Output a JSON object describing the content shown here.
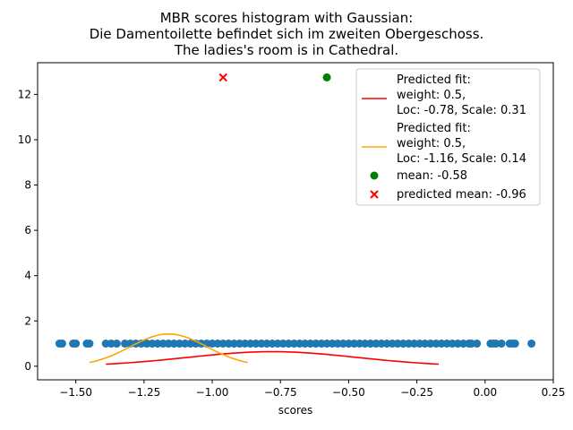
{
  "chart_data": {
    "type": "scatter",
    "title_lines": [
      "MBR scores histogram with Gaussian:",
      "Die Damentoilette befindet sich im zweiten Obergeschoss.",
      "The ladies's room is in Cathedral."
    ],
    "xlabel": "scores",
    "ylabel": "",
    "xlim": [
      -1.64,
      0.25
    ],
    "ylim": [
      -0.6,
      13.4
    ],
    "x_ticks": [
      -1.5,
      -1.25,
      -1.0,
      -0.75,
      -0.5,
      -0.25,
      0.0,
      0.25
    ],
    "x_tick_labels": [
      "−1.50",
      "−1.25",
      "−1.00",
      "−0.75",
      "−0.50",
      "−0.25",
      "0.00",
      "0.25"
    ],
    "y_ticks": [
      0,
      2,
      4,
      6,
      8,
      10,
      12
    ],
    "y_tick_labels": [
      "0",
      "2",
      "4",
      "6",
      "8",
      "10",
      "12"
    ],
    "grid": false,
    "legend_position": "top-right",
    "scores": {
      "y": 1,
      "color": "#1f77b4",
      "x": [
        -1.56,
        -1.55,
        -1.51,
        -1.5,
        -1.46,
        -1.45,
        -1.39,
        -1.37,
        -1.35,
        -1.32,
        -1.3,
        -1.28,
        -1.26,
        -1.24,
        -1.22,
        -1.2,
        -1.18,
        -1.16,
        -1.14,
        -1.12,
        -1.1,
        -1.08,
        -1.06,
        -1.04,
        -1.02,
        -1.0,
        -0.98,
        -0.96,
        -0.94,
        -0.92,
        -0.9,
        -0.88,
        -0.86,
        -0.84,
        -0.82,
        -0.8,
        -0.78,
        -0.76,
        -0.74,
        -0.72,
        -0.7,
        -0.68,
        -0.66,
        -0.64,
        -0.62,
        -0.6,
        -0.58,
        -0.56,
        -0.54,
        -0.52,
        -0.5,
        -0.48,
        -0.46,
        -0.44,
        -0.42,
        -0.4,
        -0.38,
        -0.36,
        -0.34,
        -0.32,
        -0.3,
        -0.28,
        -0.26,
        -0.24,
        -0.22,
        -0.2,
        -0.18,
        -0.16,
        -0.14,
        -0.12,
        -0.1,
        -0.08,
        -0.06,
        -0.05,
        -0.03,
        0.02,
        0.03,
        0.04,
        0.06,
        0.09,
        0.1,
        0.11,
        0.17
      ]
    },
    "fits": [
      {
        "label_lines": [
          "Predicted fit:",
          "weight: 0.5,",
          "Loc: -0.78, Scale: 0.31"
        ],
        "weight": 0.5,
        "loc": -0.78,
        "scale": 0.31,
        "x_range": [
          -1.39,
          -0.17
        ],
        "color": "#ff0000"
      },
      {
        "label_lines": [
          "Predicted fit:",
          "weight: 0.5,",
          "Loc: -1.16, Scale: 0.14"
        ],
        "weight": 0.5,
        "loc": -1.16,
        "scale": 0.14,
        "x_range": [
          -1.45,
          -0.87
        ],
        "color": "#ffa500"
      }
    ],
    "mean": {
      "label": "mean: -0.58",
      "x": -0.58,
      "y": 12.75,
      "color": "#008000"
    },
    "predicted_mean": {
      "label": "predicted mean: -0.96",
      "x": -0.96,
      "y": 12.75,
      "color": "#ff0000"
    }
  }
}
